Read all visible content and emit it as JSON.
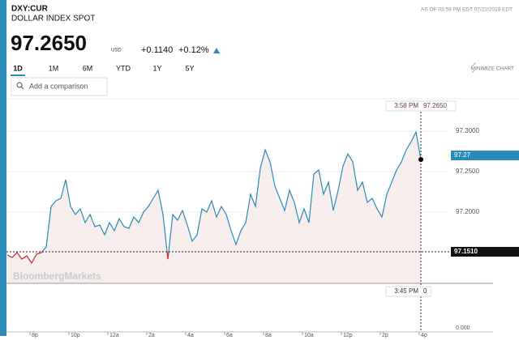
{
  "header": {
    "symbol": "DXY:CUR",
    "name": "DOLLAR INDEX SPOT",
    "price": "97.2650",
    "currency": "USD",
    "change": "+0.1140",
    "change_pct": "+0.12%",
    "as_of": "AS OF 03:59 PM EDT 07/22/2019 EDT"
  },
  "tabs": [
    "1D",
    "1M",
    "6M",
    "YTD",
    "1Y",
    "5Y"
  ],
  "active_tab": 0,
  "minimize": "MINIMIZE CHART",
  "search_placeholder": "Add a comparison",
  "chart_data": {
    "type": "line",
    "color": "#2a8ab8",
    "x": [
      18.5,
      18.75,
      19,
      19.25,
      19.5,
      19.75,
      20,
      20.25,
      20.5,
      20.75,
      21,
      21.25,
      21.5,
      21.75,
      22,
      22.25,
      22.5,
      22.75,
      23,
      23.25,
      23.5,
      23.75,
      24,
      24.25,
      24.5,
      24.75,
      25,
      25.25,
      25.5,
      25.75,
      26,
      26.25,
      26.5,
      26.75,
      27,
      27.25,
      27.5,
      27.75,
      28,
      28.25,
      28.5,
      28.75,
      29,
      29.25,
      29.5,
      29.75,
      30,
      30.25,
      30.5,
      30.75,
      31,
      31.25,
      31.5,
      31.75,
      32,
      32.25,
      32.5,
      32.75,
      33,
      33.25,
      33.5,
      33.75,
      34,
      34.25,
      34.5,
      34.75,
      35,
      35.25,
      35.5,
      35.75,
      36,
      36.25,
      36.5,
      36.75,
      37,
      37.25,
      37.5,
      37.75,
      38,
      38.25,
      38.5,
      38.75,
      39,
      39.25,
      39.5,
      39.75
    ],
    "values": [
      97.147,
      97.144,
      97.15,
      97.142,
      97.146,
      97.137,
      97.148,
      97.15,
      97.157,
      97.207,
      97.214,
      97.217,
      97.24,
      97.207,
      97.197,
      97.204,
      97.187,
      97.197,
      97.182,
      97.184,
      97.172,
      97.187,
      97.177,
      97.192,
      97.182,
      97.18,
      97.194,
      97.187,
      97.2,
      97.207,
      97.217,
      97.227,
      97.197,
      97.142,
      97.197,
      97.19,
      97.202,
      97.184,
      97.164,
      97.172,
      97.204,
      97.2,
      97.214,
      97.194,
      97.207,
      97.197,
      97.177,
      97.16,
      97.177,
      97.187,
      97.222,
      97.207,
      97.254,
      97.277,
      97.262,
      97.232,
      97.217,
      97.202,
      97.227,
      97.212,
      97.187,
      97.204,
      97.187,
      97.247,
      97.252,
      97.222,
      97.237,
      97.202,
      97.227,
      97.257,
      97.272,
      97.262,
      97.227,
      97.237,
      97.212,
      97.217,
      97.204,
      97.194,
      97.222,
      97.237,
      97.252,
      97.262,
      97.277,
      97.287,
      97.299,
      97.265
    ],
    "xlim": [
      18.333,
      41.042
    ],
    "xticks": [
      {
        "value": 20,
        "label": "8p"
      },
      {
        "value": 22,
        "label": "10p"
      },
      {
        "value": 24,
        "label": "12a"
      },
      {
        "value": 26,
        "label": "2a"
      },
      {
        "value": 28,
        "label": "4a"
      },
      {
        "value": 30,
        "label": "6a"
      },
      {
        "value": 32,
        "label": "8a"
      },
      {
        "value": 34,
        "label": "10a"
      },
      {
        "value": 36,
        "label": "12p"
      },
      {
        "value": 38,
        "label": "2p"
      },
      {
        "value": 40,
        "label": "4p"
      }
    ],
    "ylim": [
      97.112,
      97.332
    ],
    "yticks": [
      {
        "value": 97.2,
        "label": "97.2000"
      },
      {
        "value": 97.25,
        "label": "97.2500"
      },
      {
        "value": 97.3,
        "label": "97.3000"
      }
    ],
    "grid": true,
    "prev_close": {
      "value": 97.151,
      "label": "97.1510"
    },
    "last_tag": 97.27,
    "crosshair": {
      "time": "3:58 PM",
      "value": {
        "value": 97.265,
        "label": "97.2650"
      }
    },
    "watermark": "BloombergMarkets",
    "volume_panel": {
      "time": "3:45 PM",
      "value": 0,
      "tick": {
        "value": 0,
        "label": "0.000"
      }
    }
  }
}
